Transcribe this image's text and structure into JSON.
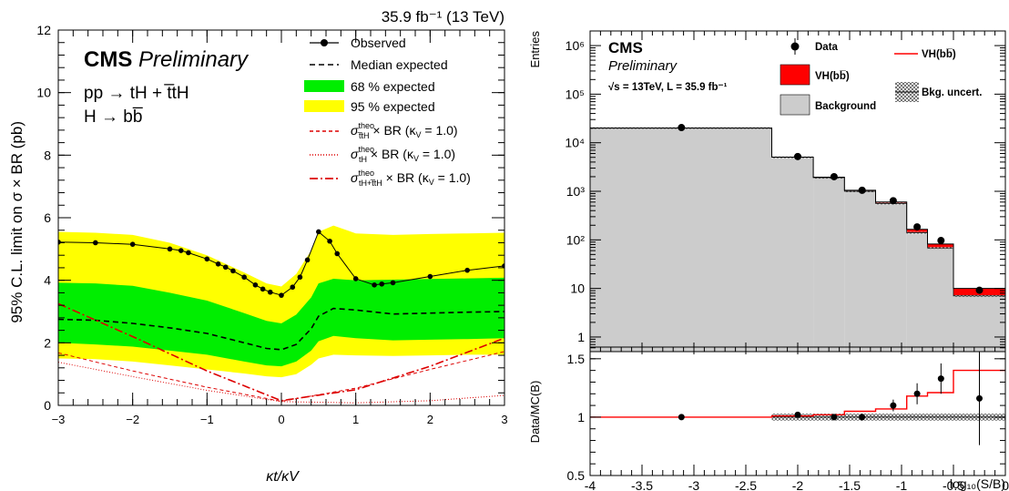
{
  "chart_data": [
    {
      "type": "line",
      "header": "35.9 fb⁻¹ (13 TeV)",
      "experiment": "CMS",
      "experiment_status": "Preliminary",
      "process_lines": [
        "pp → tH + t̅tH",
        "H → bb̅"
      ],
      "xlabel": "κt/κV",
      "ylabel": "95% C.L. limit on σ × BR (pb)",
      "xlim": [
        -3,
        3
      ],
      "ylim": [
        0,
        12
      ],
      "xticks": [
        -3,
        -2,
        -1,
        0,
        1,
        2,
        3
      ],
      "xtick_labels": [
        "−3",
        "−2",
        "−1",
        "0",
        "1",
        "2",
        "3"
      ],
      "yticks": [
        0,
        2,
        4,
        6,
        8,
        10,
        12
      ],
      "ytick_labels": [
        "0",
        "2",
        "4",
        "6",
        "8",
        "10",
        "12"
      ],
      "legend_position": "top-right",
      "legend": [
        {
          "label": "Observed",
          "style": "marker-line"
        },
        {
          "label": "Median expected",
          "style": "dashed"
        },
        {
          "label": "68 % expected",
          "style": "fill",
          "color": "#00ee00"
        },
        {
          "label": "95 % expected",
          "style": "fill",
          "color": "#ffff00"
        },
        {
          "label": "σtheo(ttH) × BR (κV = 1.0)",
          "style": "red-dashed"
        },
        {
          "label": "σtheo(tH) × BR (κV = 1.0)",
          "style": "red-dotted"
        },
        {
          "label": "σtheo(tH+ttH) × BR (κV = 1.0)",
          "style": "red-dashdot"
        }
      ],
      "legend_theo": {
        "sigma": "σ",
        "sup": "theo",
        "subs": [
          "t̅tH",
          "tH",
          "tH+t̅tH"
        ],
        "rest": "× BR (κ",
        "kv_sub": "V",
        "kv_val": "= 1.0)"
      },
      "observed": {
        "x": [
          -3.0,
          -2.5,
          -2.0,
          -1.5,
          -1.35,
          -1.25,
          -1.0,
          -0.85,
          -0.75,
          -0.65,
          -0.5,
          -0.35,
          -0.25,
          -0.15,
          0.0,
          0.15,
          0.25,
          0.35,
          0.5,
          0.65,
          0.75,
          1.0,
          1.25,
          1.35,
          1.5,
          2.0,
          2.5,
          3.0
        ],
        "y": [
          5.22,
          5.2,
          5.15,
          5.0,
          4.95,
          4.88,
          4.68,
          4.52,
          4.42,
          4.3,
          4.1,
          3.85,
          3.72,
          3.62,
          3.52,
          3.78,
          4.1,
          4.65,
          5.55,
          5.25,
          4.85,
          4.05,
          3.85,
          3.88,
          3.92,
          4.12,
          4.32,
          4.46
        ]
      },
      "expected": {
        "x": [
          -3.0,
          -2.5,
          -2.0,
          -1.5,
          -1.0,
          -0.5,
          -0.2,
          0.0,
          0.2,
          0.4,
          0.5,
          0.7,
          1.0,
          1.5,
          2.0,
          2.5,
          3.0
        ],
        "median": [
          2.75,
          2.72,
          2.62,
          2.48,
          2.3,
          2.0,
          1.82,
          1.78,
          1.95,
          2.45,
          2.85,
          3.1,
          3.05,
          2.92,
          2.95,
          2.98,
          3.0
        ],
        "band68_low": [
          2.0,
          1.95,
          1.88,
          1.75,
          1.62,
          1.4,
          1.28,
          1.25,
          1.4,
          1.75,
          2.05,
          2.22,
          2.15,
          2.08,
          2.1,
          2.12,
          2.15
        ],
        "band68_high": [
          3.92,
          3.9,
          3.82,
          3.6,
          3.35,
          2.95,
          2.7,
          2.62,
          2.9,
          3.45,
          3.9,
          4.05,
          4.0,
          4.02,
          4.04,
          4.06,
          4.08
        ],
        "band95_low": [
          1.5,
          1.48,
          1.4,
          1.28,
          1.15,
          1.02,
          0.93,
          0.9,
          1.0,
          1.3,
          1.5,
          1.62,
          1.6,
          1.58,
          1.6,
          1.62,
          1.62
        ],
        "band95_high": [
          5.55,
          5.52,
          5.45,
          5.2,
          4.8,
          4.25,
          3.9,
          3.8,
          4.2,
          4.95,
          5.55,
          5.75,
          5.5,
          5.45,
          5.48,
          5.5,
          5.52
        ]
      },
      "theory": {
        "ttH": {
          "x": [
            -3,
            -2,
            -1,
            0,
            1,
            2,
            3
          ],
          "y": [
            1.68,
            1.1,
            0.58,
            0.13,
            0.55,
            1.15,
            1.72
          ]
        },
        "tH": {
          "x": [
            -3,
            -2,
            -1,
            0,
            1,
            2,
            3
          ],
          "y": [
            1.38,
            0.92,
            0.48,
            0.12,
            0.08,
            0.15,
            0.32
          ]
        },
        "tH_ttH": {
          "x": [
            -3,
            -2,
            -1,
            0,
            1,
            2,
            3
          ],
          "y": [
            3.25,
            2.2,
            1.1,
            0.15,
            0.5,
            1.25,
            2.15
          ]
        }
      },
      "colors": {
        "band68": "#00ee00",
        "band95": "#ffff00",
        "theory": "#dd0000"
      }
    },
    {
      "type": "bar",
      "experiment": "CMS",
      "experiment_status": "Preliminary",
      "energy_lumi": "√s = 13TeV, L = 35.9 fb⁻¹",
      "ylabel": "Entries",
      "xlabel": "log₁₀(S/B)",
      "log_y": true,
      "ylim": [
        0.5,
        2000000
      ],
      "xlim": [
        -4,
        0
      ],
      "ytick_labels": [
        {
          "v": 1,
          "label": "1"
        },
        {
          "v": 10,
          "label": "10"
        },
        {
          "v": 100,
          "label": "10²"
        },
        {
          "v": 1000,
          "label": "10³"
        },
        {
          "v": 10000,
          "label": "10⁴"
        },
        {
          "v": 100000,
          "label": "10⁵"
        },
        {
          "v": 1000000,
          "label": "10⁶"
        }
      ],
      "legend_position": "top",
      "legend": [
        {
          "label": "Data",
          "style": "marker"
        },
        {
          "label": "VH(bb̅)",
          "style": "fill",
          "color": "#ff0000"
        },
        {
          "label": "Background",
          "style": "fill",
          "color": "#cccccc"
        },
        {
          "label": "VH(bb̅)",
          "style": "line",
          "color": "#ff0000"
        },
        {
          "label": "Bkg. uncert.",
          "style": "hatch"
        }
      ],
      "bins": [
        {
          "lo": -4.0,
          "hi": -2.25,
          "bkg": 20000,
          "sig": 20000
        },
        {
          "lo": -2.25,
          "hi": -1.85,
          "bkg": 5000,
          "sig": 5050
        },
        {
          "lo": -1.85,
          "hi": -1.55,
          "bkg": 1900,
          "sig": 1950
        },
        {
          "lo": -1.55,
          "hi": -1.25,
          "bkg": 1000,
          "sig": 1050
        },
        {
          "lo": -1.25,
          "hi": -0.95,
          "bkg": 560,
          "sig": 600
        },
        {
          "lo": -0.95,
          "hi": -0.75,
          "bkg": 140,
          "sig": 165
        },
        {
          "lo": -0.75,
          "hi": -0.5,
          "bkg": 68,
          "sig": 82
        },
        {
          "lo": -0.5,
          "hi": 0.0,
          "bkg": 7,
          "sig": 10
        }
      ],
      "data_points": [
        {
          "x": -3.12,
          "y": 20500
        },
        {
          "x": -2.0,
          "y": 5200
        },
        {
          "x": -1.65,
          "y": 2000
        },
        {
          "x": -1.38,
          "y": 1050
        },
        {
          "x": -1.08,
          "y": 640
        },
        {
          "x": -0.85,
          "y": 185
        },
        {
          "x": -0.62,
          "y": 97
        },
        {
          "x": -0.25,
          "y": 9.2
        }
      ],
      "ratio": {
        "ylabel": "Data/MC(B)",
        "ylim": [
          0.5,
          1.6
        ],
        "yticks": [
          0.5,
          1,
          1.5
        ],
        "ytick_labels": [
          "0.5",
          "1",
          "1.5"
        ],
        "xticks": [
          -4,
          -3.5,
          -3,
          -2.5,
          -2,
          -1.5,
          -1,
          -0.5,
          0
        ],
        "xtick_labels": [
          "-4",
          "-3.5",
          "-3",
          "-2.5",
          "-2",
          "-1.5",
          "-1",
          "-0.5",
          "0"
        ],
        "points": [
          {
            "x": -3.12,
            "y": 1.0,
            "err": 0.01
          },
          {
            "x": -2.0,
            "y": 1.02,
            "err": 0.015
          },
          {
            "x": -1.65,
            "y": 1.0,
            "err": 0.025
          },
          {
            "x": -1.38,
            "y": 1.0,
            "err": 0.03
          },
          {
            "x": -1.08,
            "y": 1.1,
            "err": 0.05
          },
          {
            "x": -0.85,
            "y": 1.2,
            "err": 0.09
          },
          {
            "x": -0.62,
            "y": 1.33,
            "err": 0.13
          },
          {
            "x": -0.25,
            "y": 1.16,
            "err": 0.4
          }
        ],
        "sig_ratio": [
          1.0,
          1.01,
          1.02,
          1.05,
          1.07,
          1.18,
          1.21,
          1.4
        ]
      }
    }
  ]
}
